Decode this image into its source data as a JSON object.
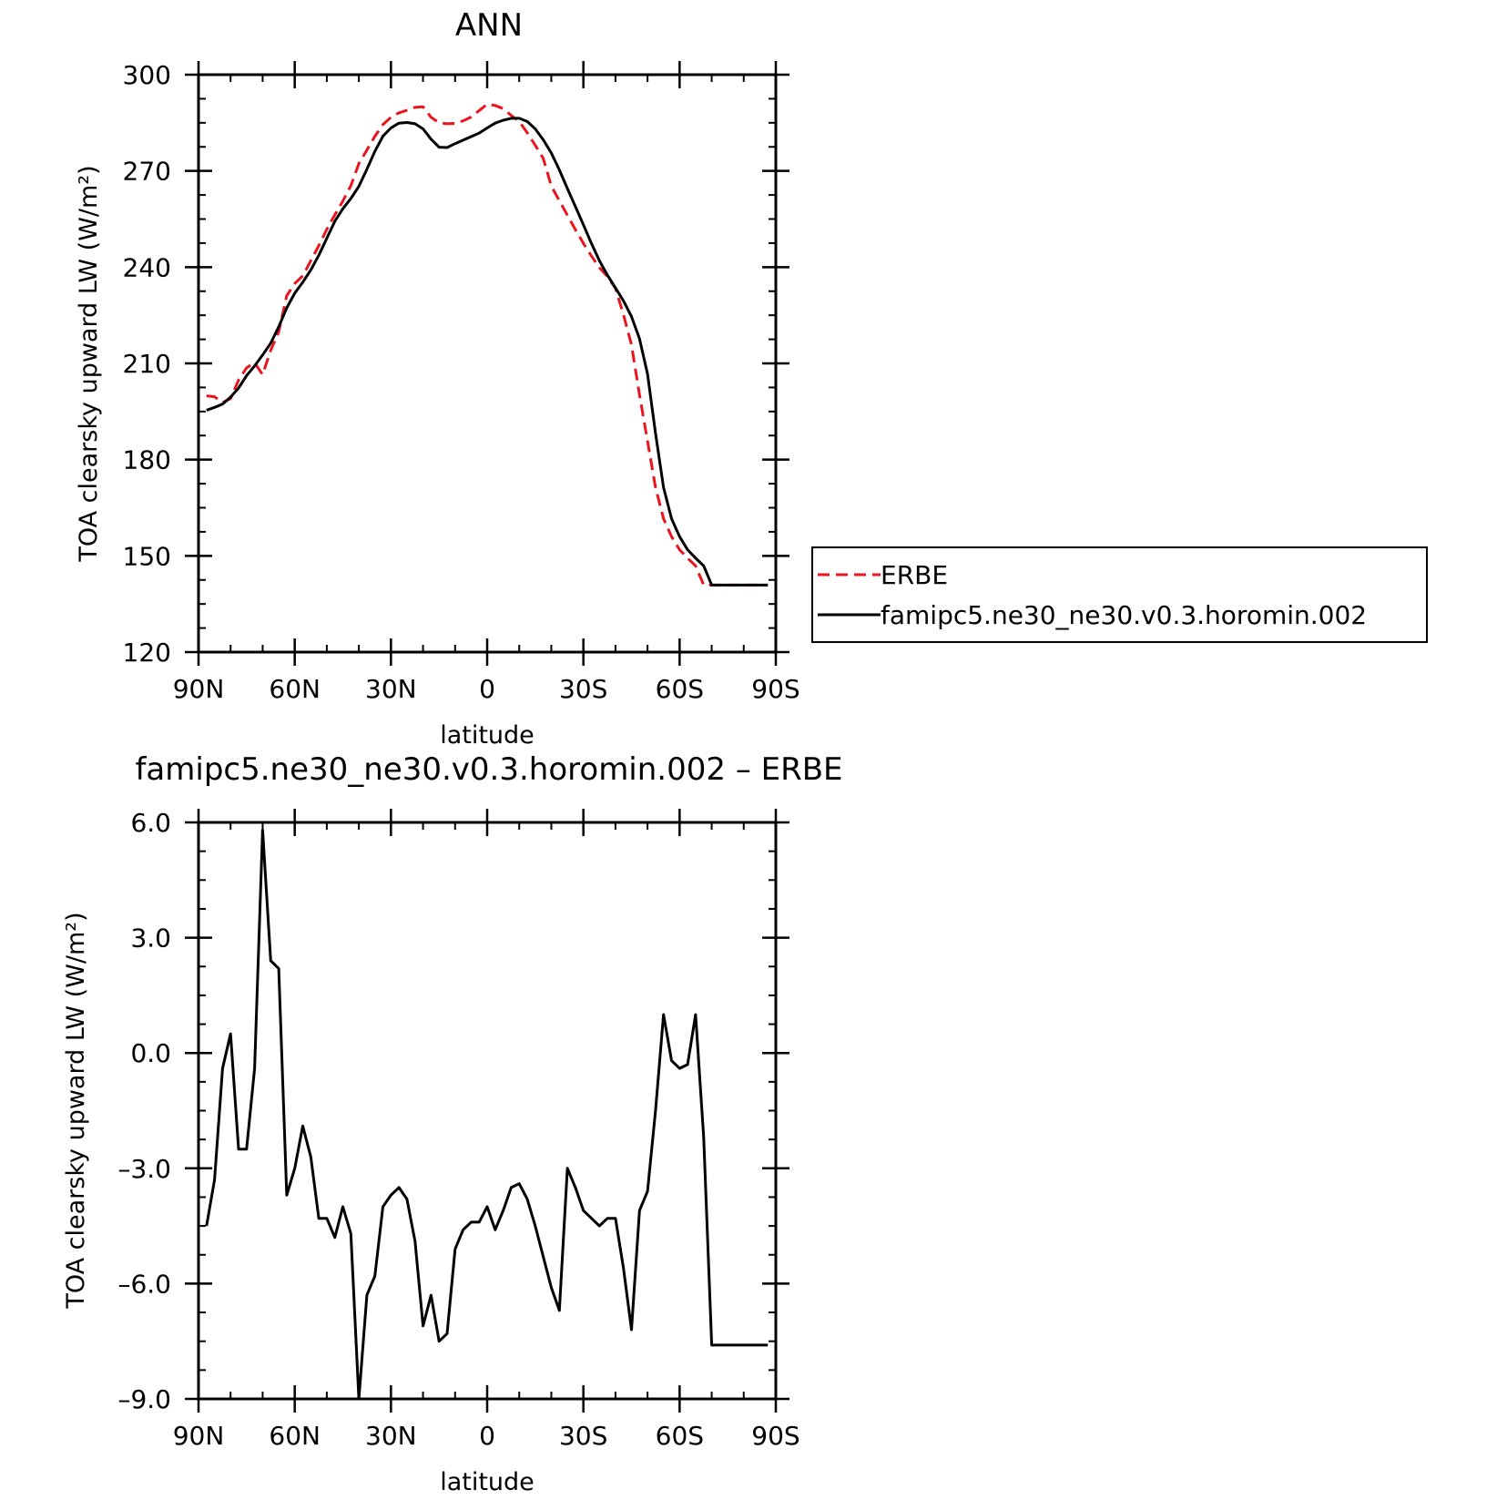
{
  "chart_data": [
    {
      "type": "line",
      "title": "ANN",
      "xlabel": "latitude",
      "ylabel": "TOA clearsky upward LW (W/m²)",
      "xlim": [
        90,
        -90
      ],
      "ylim": [
        120,
        300
      ],
      "x_ticks": [
        90,
        60,
        30,
        0,
        -30,
        -60,
        -90
      ],
      "x_tick_labels": [
        "90N",
        "60N",
        "30N",
        "0",
        "30S",
        "60S",
        "90S"
      ],
      "y_ticks": [
        120,
        150,
        180,
        210,
        240,
        270,
        300
      ],
      "y_tick_labels": [
        "120",
        "150",
        "180",
        "210",
        "240",
        "270",
        "300"
      ],
      "legend_placement": "outside-right",
      "series": [
        {
          "name": "ERBE",
          "color": "#e8141e",
          "style": "dashed",
          "x": [
            87.5,
            85,
            82.5,
            80,
            77.5,
            75,
            72.5,
            70,
            67.5,
            65,
            62.5,
            60,
            57.5,
            55,
            52.5,
            50,
            47.5,
            45,
            42.5,
            40,
            37.5,
            35,
            32.5,
            30,
            27.5,
            25,
            22.5,
            20,
            17.5,
            15,
            12.5,
            10,
            7.5,
            5,
            2.5,
            0,
            -2.5,
            -5,
            -7.5,
            -10,
            -12.5,
            -15,
            -17.5,
            -20,
            -22.5,
            -25,
            -27.5,
            -30,
            -32.5,
            -35,
            -37.5,
            -40,
            -42.5,
            -45,
            -47.5,
            -50,
            -52.5,
            -55,
            -57.5,
            -60,
            -62.5,
            -65,
            -67.5,
            -70,
            -72.5,
            -75,
            -77.5,
            -80,
            -82.5,
            -85,
            -87.5
          ],
          "values": [
            199.9,
            199.6,
            197.8,
            199.0,
            204.8,
            208.6,
            210.2,
            206.5,
            214.1,
            219.8,
            231.1,
            234.9,
            237.3,
            242.0,
            246.7,
            251.8,
            256.3,
            260.6,
            265.4,
            272.3,
            276.5,
            280.8,
            284.4,
            286.7,
            288.1,
            288.9,
            289.8,
            290.0,
            286.7,
            285.0,
            284.7,
            284.8,
            285.6,
            286.8,
            288.8,
            290.8,
            290.4,
            289.4,
            287.3,
            285.4,
            281.9,
            278.0,
            273.9,
            265.3,
            260.7,
            256.2,
            251.7,
            247.4,
            243.5,
            239.8,
            237.1,
            233.4,
            225.2,
            215.8,
            200.2,
            185.8,
            171.3,
            161.6,
            156.0,
            151.9,
            149.3,
            146.9,
            140.9,
            140.9,
            140.9,
            140.9,
            140.9,
            140.9,
            140.9,
            140.9,
            140.9
          ]
        },
        {
          "name": "famipc5.ne30_ne30.v0.3.horomin.002",
          "color": "#000000",
          "style": "solid",
          "x": [
            87.5,
            85,
            82.5,
            80,
            77.5,
            75,
            72.5,
            70,
            67.5,
            65,
            62.5,
            60,
            57.5,
            55,
            52.5,
            50,
            47.5,
            45,
            42.5,
            40,
            37.5,
            35,
            32.5,
            30,
            27.5,
            25,
            22.5,
            20,
            17.5,
            15,
            12.5,
            10,
            7.5,
            5,
            2.5,
            0,
            -2.5,
            -5,
            -7.5,
            -10,
            -12.5,
            -15,
            -17.5,
            -20,
            -22.5,
            -25,
            -27.5,
            -30,
            -32.5,
            -35,
            -37.5,
            -40,
            -42.5,
            -45,
            -47.5,
            -50,
            -52.5,
            -55,
            -57.5,
            -60,
            -62.5,
            -65,
            -67.5,
            -70,
            -72.5,
            -75,
            -77.5,
            -80,
            -82.5,
            -85,
            -87.5
          ],
          "values": [
            195.4,
            196.3,
            197.3,
            199.5,
            202.3,
            206.2,
            209.2,
            212.6,
            216.3,
            221.4,
            227.3,
            231.9,
            235.3,
            239.1,
            243.7,
            249.0,
            254.3,
            258.2,
            261.4,
            265.2,
            270.5,
            276.1,
            280.8,
            283.4,
            284.9,
            285.1,
            284.7,
            283.1,
            279.9,
            277.4,
            277.3,
            278.5,
            279.6,
            280.7,
            281.8,
            283.4,
            284.9,
            285.8,
            286.4,
            286.4,
            285.4,
            283.1,
            279.7,
            275.6,
            270.3,
            264.5,
            258.9,
            253.2,
            247.4,
            242.0,
            237.5,
            233.5,
            229.5,
            224.6,
            217.7,
            206.7,
            188.2,
            171.3,
            161.6,
            156.0,
            151.9,
            149.3,
            146.9,
            140.9,
            140.9,
            140.9,
            140.9,
            140.9,
            140.9,
            140.9,
            140.9
          ]
        }
      ]
    },
    {
      "type": "line",
      "title": "famipc5.ne30_ne30.v0.3.horomin.002 – ERBE",
      "xlabel": "latitude",
      "ylabel": "TOA clearsky upward LW (W/m²)",
      "xlim": [
        90,
        -90
      ],
      "ylim": [
        -9,
        6
      ],
      "x_ticks": [
        90,
        60,
        30,
        0,
        -30,
        -60,
        -90
      ],
      "x_tick_labels": [
        "90N",
        "60N",
        "30N",
        "0",
        "30S",
        "60S",
        "90S"
      ],
      "y_ticks": [
        6,
        3,
        0,
        -3,
        -6,
        -9
      ],
      "y_tick_labels": [
        "6.0",
        "3.0",
        "0.0",
        "–3.0",
        "–6.0",
        "–9.0"
      ],
      "series": [
        {
          "color": "#000000",
          "style": "solid",
          "x": [
            87.5,
            85,
            82.5,
            80,
            77.5,
            75,
            72.5,
            70,
            67.5,
            65,
            62.5,
            60,
            57.5,
            55,
            52.5,
            50,
            47.5,
            45,
            42.5,
            40,
            37.5,
            35,
            32.5,
            30,
            27.5,
            25,
            22.5,
            20,
            17.5,
            15,
            12.5,
            10,
            7.5,
            5,
            2.5,
            0,
            -2.5,
            -5,
            -7.5,
            -10,
            -12.5,
            -15,
            -17.5,
            -20,
            -22.5,
            -25,
            -27.5,
            -30,
            -32.5,
            -35,
            -37.5,
            -40,
            -42.5,
            -45,
            -47.5,
            -50,
            -52.5,
            -55,
            -57.5,
            -60,
            -62.5,
            -65,
            -67.5,
            -70,
            -72.5,
            -75,
            -77.5,
            -80,
            -82.5,
            -85,
            -87.5
          ],
          "values": [
            -4.5,
            -3.3,
            -0.4,
            0.5,
            -2.5,
            -2.5,
            -0.4,
            5.8,
            2.4,
            2.2,
            -3.7,
            -3.0,
            -1.9,
            -2.7,
            -4.3,
            -4.3,
            -4.8,
            -4.0,
            -4.7,
            -9.0,
            -6.3,
            -5.8,
            -4.0,
            -3.7,
            -3.5,
            -3.8,
            -4.9,
            -7.1,
            -6.3,
            -7.5,
            -7.3,
            -5.1,
            -4.6,
            -4.4,
            -4.4,
            -4.0,
            -4.6,
            -4.1,
            -3.5,
            -3.4,
            -3.8,
            -4.5,
            -5.3,
            -6.1,
            -6.7,
            -3.0,
            -3.5,
            -4.1,
            -4.3,
            -4.5,
            -4.3,
            -4.3,
            -5.6,
            -7.2,
            -4.1,
            -3.6,
            -1.5,
            1.0,
            -0.2,
            -0.4,
            -0.3,
            1.0,
            -2.2,
            -7.6,
            -7.6,
            -7.6,
            -7.6,
            -7.6,
            -7.6,
            -7.6,
            -7.6
          ]
        }
      ]
    }
  ]
}
